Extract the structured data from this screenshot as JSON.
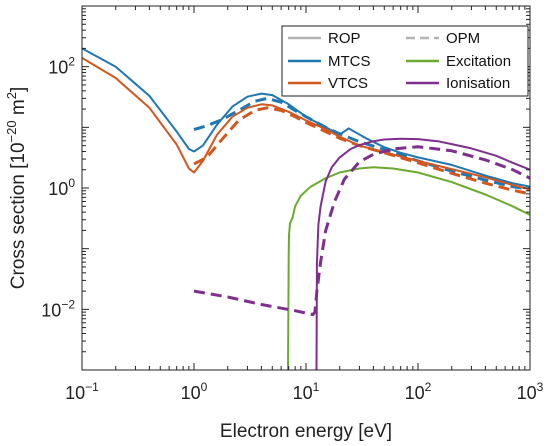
{
  "chart_data": {
    "type": "line",
    "title": "",
    "xlabel": "Electron energy [eV]",
    "ylabel": "Cross section [10",
    "ylabel_exp": "−20",
    "ylabel_unit": " m",
    "ylabel_unit_exp": "2",
    "ylabel_close": "]",
    "xscale": "log",
    "yscale": "log",
    "xlim": [
      0.1,
      1000
    ],
    "ylim": [
      0.001,
      1000
    ],
    "x_ticks": [
      {
        "value": 0.1,
        "base": "10",
        "exp": "−1"
      },
      {
        "value": 1,
        "base": "10",
        "exp": "0"
      },
      {
        "value": 10,
        "base": "10",
        "exp": "1"
      },
      {
        "value": 100,
        "base": "10",
        "exp": "2"
      },
      {
        "value": 1000,
        "base": "10",
        "exp": "3"
      }
    ],
    "y_ticks": [
      {
        "value": 0.01,
        "base": "10",
        "exp": "−2"
      },
      {
        "value": 1,
        "base": "10",
        "exp": "0"
      },
      {
        "value": 100,
        "base": "10",
        "exp": "2"
      }
    ],
    "grid": false,
    "legend_position": "top-right",
    "legend": [
      {
        "label": "ROP",
        "color": "#b4b4b4",
        "style": "solid"
      },
      {
        "label": "OPM",
        "color": "#b4b4b4",
        "style": "dashed"
      },
      {
        "label": "MTCS",
        "color": "#1f77b4",
        "style": "solid"
      },
      {
        "label": "Excitation",
        "color": "#6aaa2e",
        "style": "solid"
      },
      {
        "label": "VTCS",
        "color": "#d2571f",
        "style": "solid"
      },
      {
        "label": "Ionisation",
        "color": "#7e2f8e",
        "style": "solid"
      }
    ],
    "series": [
      {
        "name": "MTCS",
        "method": "ROP",
        "color": "#1f77b4",
        "style": "solid",
        "x": [
          0.1,
          0.2,
          0.4,
          0.7,
          0.9,
          1.0,
          1.2,
          1.6,
          2.2,
          3,
          4,
          5,
          7,
          10,
          15,
          20,
          24,
          28,
          35,
          50,
          70,
          100,
          200,
          400,
          700,
          1000
        ],
        "y": [
          200,
          100,
          33,
          8.5,
          4.4,
          4.0,
          5.0,
          11,
          22,
          32,
          36,
          34,
          24,
          15,
          10,
          7.6,
          9.6,
          8.2,
          6.5,
          4.7,
          3.8,
          3.2,
          2.4,
          1.6,
          1.2,
          1.05
        ]
      },
      {
        "name": "MTCS",
        "method": "OPM",
        "color": "#1f77b4",
        "style": "dashed",
        "x": [
          1.0,
          1.3,
          1.8,
          2.5,
          3.5,
          4.5,
          6,
          8,
          10,
          15,
          20,
          30,
          50,
          100,
          200,
          400,
          700,
          1000
        ],
        "y": [
          9.2,
          10.6,
          13.5,
          19,
          27,
          30,
          26,
          19,
          15,
          10,
          7.8,
          5.8,
          4.3,
          2.8,
          1.9,
          1.35,
          1.05,
          0.95
        ]
      },
      {
        "name": "VTCS",
        "method": "ROP",
        "color": "#d2571f",
        "style": "solid",
        "x": [
          0.1,
          0.2,
          0.4,
          0.7,
          0.9,
          1.0,
          1.2,
          1.6,
          2.2,
          3,
          4,
          5,
          7,
          10,
          15,
          20,
          30,
          50,
          70,
          100,
          200,
          400,
          700,
          1000
        ],
        "y": [
          140,
          65,
          21,
          5.2,
          2.1,
          1.8,
          2.8,
          7.5,
          15,
          21,
          24,
          23,
          18,
          13,
          9.3,
          7,
          5,
          3.9,
          3.3,
          2.8,
          2.05,
          1.5,
          1.12,
          0.95
        ]
      },
      {
        "name": "VTCS",
        "method": "OPM",
        "color": "#d2571f",
        "style": "dashed",
        "x": [
          1.0,
          1.3,
          1.8,
          2.5,
          3.5,
          4.5,
          6,
          8,
          10,
          15,
          20,
          30,
          50,
          100,
          200,
          400,
          700,
          1000
        ],
        "y": [
          2.5,
          3.2,
          6.5,
          13,
          19,
          21,
          19,
          15,
          12,
          8.5,
          6.6,
          5,
          3.8,
          2.6,
          1.75,
          1.2,
          0.92,
          0.8
        ]
      },
      {
        "name": "Excitation",
        "method": "ROP",
        "color": "#6aaa2e",
        "style": "solid",
        "x": [
          6.9,
          7.0,
          7.05,
          7.2,
          7.6,
          8.0,
          9.0,
          11,
          15,
          20,
          30,
          40,
          60,
          100,
          200,
          400,
          700,
          1000
        ],
        "y": [
          0.001,
          0.08,
          0.17,
          0.26,
          0.33,
          0.5,
          0.75,
          1.05,
          1.45,
          1.8,
          2.1,
          2.2,
          2.1,
          1.8,
          1.25,
          0.78,
          0.5,
          0.36
        ]
      },
      {
        "name": "Ionisation",
        "method": "ROP",
        "color": "#7e2f8e",
        "style": "solid",
        "x": [
          12.4,
          12.5,
          12.9,
          13.5,
          15,
          17,
          20,
          25,
          30,
          40,
          50,
          70,
          100,
          150,
          200,
          300,
          500,
          700,
          1000
        ],
        "y": [
          0.001,
          0.055,
          0.25,
          0.5,
          1.3,
          2.2,
          3.2,
          4.4,
          5.1,
          5.9,
          6.3,
          6.5,
          6.4,
          5.9,
          5.3,
          4.5,
          3.4,
          2.6,
          2.0
        ]
      },
      {
        "name": "Ionisation",
        "method": "OPM",
        "color": "#7e2f8e",
        "style": "dashed",
        "x": [
          1.0,
          2.0,
          4.0,
          8.0,
          11.5,
          12.0,
          12.5,
          13.5,
          15,
          18,
          22,
          30,
          40,
          60,
          100,
          200,
          400,
          700,
          1000
        ],
        "y": [
          0.02,
          0.016,
          0.012,
          0.0095,
          0.0082,
          0.009,
          0.02,
          0.06,
          0.2,
          0.6,
          1.4,
          2.7,
          3.6,
          4.4,
          4.8,
          4.1,
          2.9,
          2.0,
          1.45
        ]
      }
    ]
  }
}
